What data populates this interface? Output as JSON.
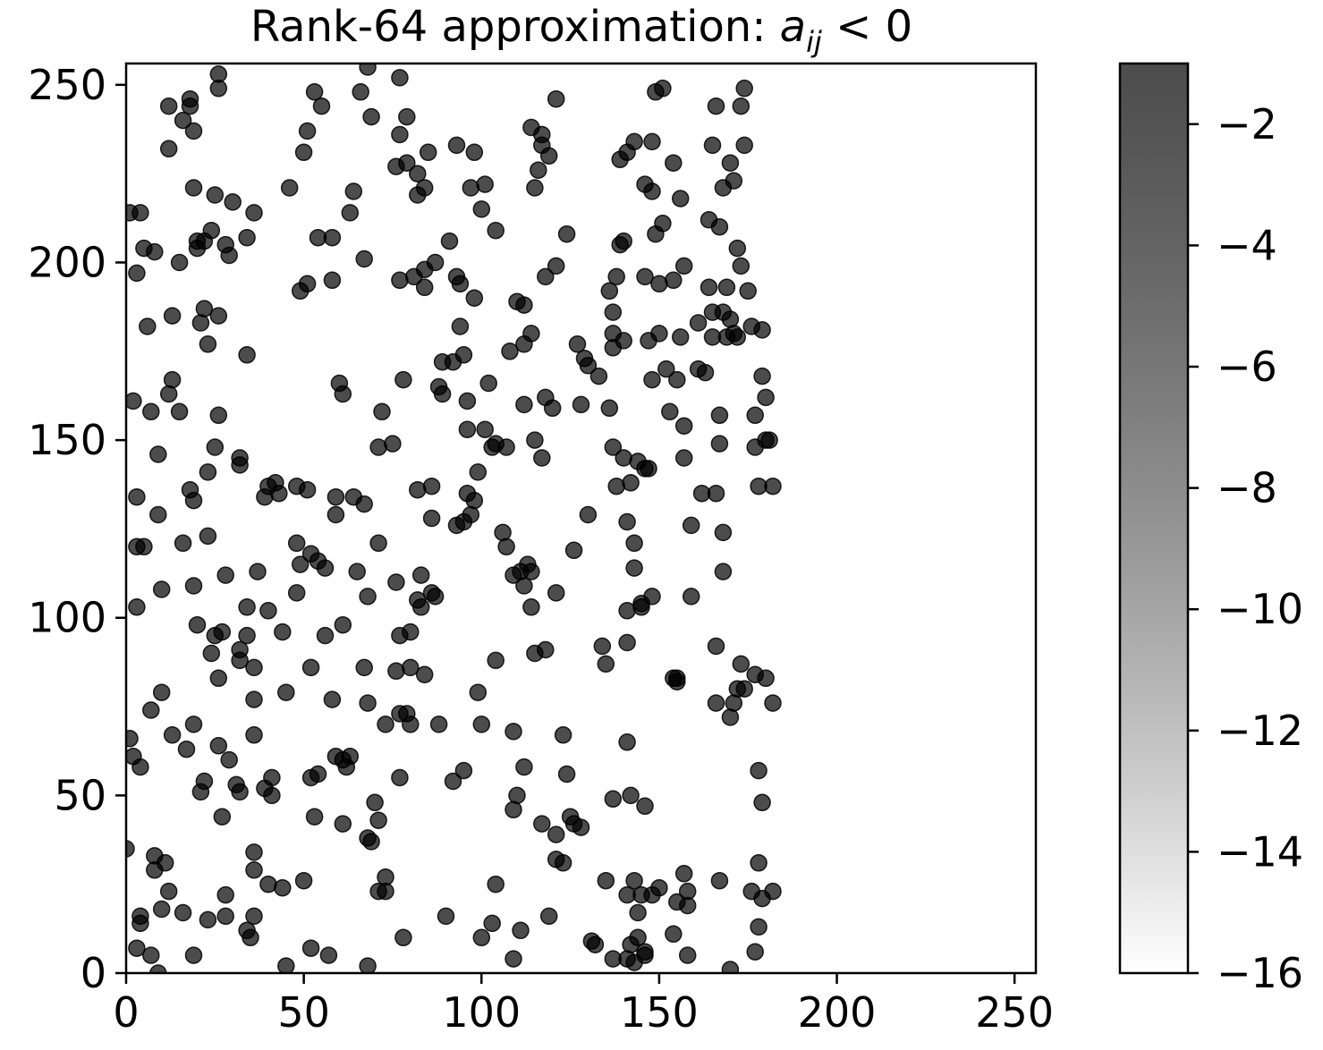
{
  "chart_data": {
    "type": "scatter",
    "title_prefix": "Rank-64 approximation: ",
    "title_math": "a",
    "title_math_sub": "ij",
    "title_suffix": " < 0",
    "xlabel": "",
    "ylabel": "",
    "xlim": [
      0,
      256
    ],
    "ylim": [
      0,
      256
    ],
    "x_ticks": [
      0,
      50,
      100,
      150,
      200,
      250
    ],
    "y_ticks": [
      0,
      50,
      100,
      150,
      200,
      250
    ],
    "x_tick_labels": [
      "0",
      "50",
      "100",
      "150",
      "200",
      "250"
    ],
    "y_tick_labels": [
      "0",
      "50",
      "100",
      "150",
      "200",
      "250"
    ],
    "grid": false,
    "colorbar": {
      "min": -16,
      "max": -1,
      "ticks": [
        -2,
        -4,
        -6,
        -8,
        -10,
        -12,
        -14,
        -16
      ],
      "tick_labels": [
        "−2",
        "−4",
        "−6",
        "−8",
        "−10",
        "−12",
        "−14",
        "−16"
      ],
      "colormap": "greys (white to black)"
    },
    "marker_color": "#000000",
    "marker_alpha": 0.7,
    "points": [
      [
        1,
        214
      ],
      [
        4,
        214
      ],
      [
        2,
        161
      ],
      [
        5,
        204
      ],
      [
        8,
        203
      ],
      [
        3,
        197
      ],
      [
        6,
        182
      ],
      [
        7,
        158
      ],
      [
        3,
        134
      ],
      [
        3,
        120
      ],
      [
        5,
        120
      ],
      [
        3,
        103
      ],
      [
        7,
        74
      ],
      [
        1,
        66
      ],
      [
        2,
        61
      ],
      [
        4,
        58
      ],
      [
        0,
        35
      ],
      [
        8,
        33
      ],
      [
        8,
        29
      ],
      [
        11,
        31
      ],
      [
        4,
        16
      ],
      [
        4,
        14
      ],
      [
        3,
        7
      ],
      [
        7,
        5
      ],
      [
        9,
        0
      ],
      [
        12,
        244
      ],
      [
        18,
        246
      ],
      [
        18,
        244
      ],
      [
        16,
        240
      ],
      [
        19,
        237
      ],
      [
        12,
        232
      ],
      [
        19,
        221
      ],
      [
        20,
        206
      ],
      [
        22,
        206
      ],
      [
        24,
        209
      ],
      [
        20,
        204
      ],
      [
        15,
        200
      ],
      [
        13,
        185
      ],
      [
        22,
        187
      ],
      [
        21,
        183
      ],
      [
        23,
        177
      ],
      [
        13,
        167
      ],
      [
        12,
        163
      ],
      [
        15,
        158
      ],
      [
        9,
        146
      ],
      [
        18,
        136
      ],
      [
        19,
        133
      ],
      [
        9,
        129
      ],
      [
        16,
        121
      ],
      [
        23,
        123
      ],
      [
        19,
        109
      ],
      [
        10,
        108
      ],
      [
        20,
        98
      ],
      [
        10,
        79
      ],
      [
        13,
        67
      ],
      [
        19,
        70
      ],
      [
        17,
        63
      ],
      [
        22,
        54
      ],
      [
        21,
        51
      ],
      [
        12,
        23
      ],
      [
        10,
        18
      ],
      [
        16,
        17
      ],
      [
        19,
        5
      ],
      [
        23,
        15
      ],
      [
        26,
        253
      ],
      [
        26,
        249
      ],
      [
        25,
        219
      ],
      [
        28,
        205
      ],
      [
        29,
        202
      ],
      [
        30,
        217
      ],
      [
        26,
        185
      ],
      [
        26,
        157
      ],
      [
        25,
        148
      ],
      [
        23,
        141
      ],
      [
        32,
        145
      ],
      [
        32,
        143
      ],
      [
        28,
        112
      ],
      [
        25,
        95
      ],
      [
        27,
        96
      ],
      [
        24,
        90
      ],
      [
        26,
        83
      ],
      [
        32,
        91
      ],
      [
        34,
        95
      ],
      [
        32,
        88
      ],
      [
        29,
        60
      ],
      [
        26,
        64
      ],
      [
        31,
        53
      ],
      [
        32,
        51
      ],
      [
        27,
        44
      ],
      [
        28,
        22
      ],
      [
        28,
        16
      ],
      [
        34,
        207
      ],
      [
        36,
        214
      ],
      [
        34,
        174
      ],
      [
        40,
        137
      ],
      [
        39,
        134
      ],
      [
        43,
        135
      ],
      [
        42,
        138
      ],
      [
        37,
        113
      ],
      [
        34,
        103
      ],
      [
        40,
        102
      ],
      [
        36,
        86
      ],
      [
        36,
        77
      ],
      [
        36,
        67
      ],
      [
        39,
        52
      ],
      [
        41,
        50
      ],
      [
        41,
        55
      ],
      [
        36,
        34
      ],
      [
        36,
        29
      ],
      [
        40,
        25
      ],
      [
        36,
        16
      ],
      [
        34,
        12
      ],
      [
        35,
        10
      ],
      [
        46,
        221
      ],
      [
        49,
        192
      ],
      [
        51,
        194
      ],
      [
        51,
        237
      ],
      [
        50,
        231
      ],
      [
        53,
        248
      ],
      [
        55,
        244
      ],
      [
        54,
        207
      ],
      [
        58,
        207
      ],
      [
        58,
        195
      ],
      [
        48,
        137
      ],
      [
        51,
        136
      ],
      [
        48,
        121
      ],
      [
        48,
        107
      ],
      [
        49,
        115
      ],
      [
        52,
        118
      ],
      [
        54,
        116
      ],
      [
        56,
        114
      ],
      [
        44,
        96
      ],
      [
        52,
        86
      ],
      [
        45,
        79
      ],
      [
        52,
        55
      ],
      [
        54,
        56
      ],
      [
        50,
        26
      ],
      [
        44,
        24
      ],
      [
        53,
        44
      ],
      [
        45,
        2
      ],
      [
        52,
        7
      ],
      [
        64,
        220
      ],
      [
        63,
        214
      ],
      [
        60,
        166
      ],
      [
        61,
        163
      ],
      [
        66,
        248
      ],
      [
        68,
        255
      ],
      [
        69,
        241
      ],
      [
        67,
        201
      ],
      [
        59,
        134
      ],
      [
        64,
        134
      ],
      [
        67,
        132
      ],
      [
        59,
        129
      ],
      [
        61,
        98
      ],
      [
        56,
        95
      ],
      [
        65,
        113
      ],
      [
        68,
        106
      ],
      [
        67,
        86
      ],
      [
        58,
        77
      ],
      [
        68,
        76
      ],
      [
        59,
        61
      ],
      [
        61,
        60
      ],
      [
        63,
        61
      ],
      [
        62,
        58
      ],
      [
        61,
        42
      ],
      [
        68,
        38
      ],
      [
        69,
        37
      ],
      [
        57,
        5
      ],
      [
        77,
        252
      ],
      [
        77,
        236
      ],
      [
        79,
        241
      ],
      [
        79,
        228
      ],
      [
        76,
        227
      ],
      [
        82,
        225
      ],
      [
        82,
        219
      ],
      [
        84,
        221
      ],
      [
        85,
        231
      ],
      [
        77,
        195
      ],
      [
        81,
        196
      ],
      [
        78,
        167
      ],
      [
        72,
        158
      ],
      [
        71,
        148
      ],
      [
        75,
        149
      ],
      [
        71,
        121
      ],
      [
        76,
        110
      ],
      [
        77,
        95
      ],
      [
        80,
        96
      ],
      [
        80,
        86
      ],
      [
        76,
        85
      ],
      [
        84,
        84
      ],
      [
        79,
        73
      ],
      [
        77,
        73
      ],
      [
        80,
        70
      ],
      [
        73,
        70
      ],
      [
        77,
        55
      ],
      [
        70,
        48
      ],
      [
        71,
        43
      ],
      [
        73,
        27
      ],
      [
        71,
        23
      ],
      [
        73,
        23
      ],
      [
        78,
        10
      ],
      [
        68,
        2
      ],
      [
        84,
        198
      ],
      [
        84,
        193
      ],
      [
        87,
        200
      ],
      [
        91,
        206
      ],
      [
        89,
        172
      ],
      [
        88,
        165
      ],
      [
        89,
        163
      ],
      [
        86,
        137
      ],
      [
        82,
        136
      ],
      [
        83,
        112
      ],
      [
        82,
        105
      ],
      [
        83,
        103
      ],
      [
        86,
        107
      ],
      [
        87,
        106
      ],
      [
        86,
        128
      ],
      [
        88,
        70
      ],
      [
        92,
        54
      ],
      [
        90,
        16
      ],
      [
        93,
        196
      ],
      [
        94,
        194
      ],
      [
        94,
        182
      ],
      [
        92,
        172
      ],
      [
        95,
        174
      ],
      [
        96,
        161
      ],
      [
        96,
        153
      ],
      [
        96,
        135
      ],
      [
        98,
        133
      ],
      [
        95,
        127
      ],
      [
        97,
        129
      ],
      [
        93,
        126
      ],
      [
        100,
        215
      ],
      [
        97,
        221
      ],
      [
        101,
        222
      ],
      [
        98,
        231
      ],
      [
        93,
        233
      ],
      [
        104,
        209
      ],
      [
        98,
        190
      ],
      [
        102,
        166
      ],
      [
        99,
        141
      ],
      [
        101,
        153
      ],
      [
        103,
        148
      ],
      [
        95,
        57
      ],
      [
        100,
        70
      ],
      [
        99,
        79
      ],
      [
        100,
        10
      ],
      [
        110,
        189
      ],
      [
        112,
        188
      ],
      [
        108,
        175
      ],
      [
        112,
        160
      ],
      [
        107,
        148
      ],
      [
        104,
        149
      ],
      [
        106,
        124
      ],
      [
        107,
        120
      ],
      [
        113,
        115
      ],
      [
        111,
        113
      ],
      [
        114,
        113
      ],
      [
        109,
        112
      ],
      [
        112,
        109
      ],
      [
        104,
        88
      ],
      [
        109,
        68
      ],
      [
        112,
        58
      ],
      [
        109,
        46
      ],
      [
        110,
        50
      ],
      [
        104,
        25
      ],
      [
        103,
        14
      ],
      [
        109,
        4
      ],
      [
        111,
        12
      ],
      [
        114,
        238
      ],
      [
        117,
        233
      ],
      [
        117,
        236
      ],
      [
        119,
        230
      ],
      [
        116,
        226
      ],
      [
        121,
        246
      ],
      [
        115,
        221
      ],
      [
        118,
        196
      ],
      [
        121,
        199
      ],
      [
        112,
        177
      ],
      [
        114,
        180
      ],
      [
        115,
        150
      ],
      [
        117,
        145
      ],
      [
        118,
        162
      ],
      [
        120,
        159
      ],
      [
        114,
        103
      ],
      [
        118,
        91
      ],
      [
        115,
        90
      ],
      [
        121,
        107
      ],
      [
        123,
        67
      ],
      [
        124,
        56
      ],
      [
        117,
        42
      ],
      [
        121,
        39
      ],
      [
        125,
        44
      ],
      [
        126,
        42
      ],
      [
        121,
        32
      ],
      [
        123,
        31
      ],
      [
        119,
        16
      ],
      [
        124,
        208
      ],
      [
        127,
        177
      ],
      [
        129,
        173
      ],
      [
        130,
        171
      ],
      [
        128,
        160
      ],
      [
        133,
        168
      ],
      [
        130,
        129
      ],
      [
        126,
        119
      ],
      [
        128,
        41
      ],
      [
        131,
        9
      ],
      [
        132,
        8
      ],
      [
        136,
        192
      ],
      [
        137,
        186
      ],
      [
        137,
        180
      ],
      [
        137,
        176
      ],
      [
        138,
        196
      ],
      [
        139,
        205
      ],
      [
        140,
        206
      ],
      [
        139,
        229
      ],
      [
        141,
        231
      ],
      [
        143,
        234
      ],
      [
        140,
        178
      ],
      [
        136,
        159
      ],
      [
        137,
        148
      ],
      [
        138,
        137
      ],
      [
        140,
        145
      ],
      [
        141,
        127
      ],
      [
        142,
        138
      ],
      [
        143,
        121
      ],
      [
        141,
        102
      ],
      [
        144,
        144
      ],
      [
        143,
        114
      ],
      [
        134,
        92
      ],
      [
        135,
        87
      ],
      [
        141,
        93
      ],
      [
        141,
        65
      ],
      [
        137,
        49
      ],
      [
        142,
        50
      ],
      [
        135,
        26
      ],
      [
        141,
        22
      ],
      [
        143,
        26
      ],
      [
        144,
        17
      ],
      [
        142,
        8
      ],
      [
        143,
        3
      ],
      [
        141,
        4
      ],
      [
        137,
        4
      ],
      [
        144,
        10
      ],
      [
        145,
        22
      ],
      [
        146,
        196
      ],
      [
        148,
        234
      ],
      [
        149,
        248
      ],
      [
        151,
        249
      ],
      [
        146,
        222
      ],
      [
        148,
        220
      ],
      [
        151,
        211
      ],
      [
        149,
        208
      ],
      [
        150,
        194
      ],
      [
        154,
        195
      ],
      [
        147,
        178
      ],
      [
        150,
        180
      ],
      [
        156,
        179
      ],
      [
        155,
        167
      ],
      [
        152,
        170
      ],
      [
        148,
        167
      ],
      [
        153,
        158
      ],
      [
        146,
        142
      ],
      [
        147,
        142
      ],
      [
        145,
        104
      ],
      [
        148,
        106
      ],
      [
        154,
        83
      ],
      [
        155,
        83
      ],
      [
        155,
        82
      ],
      [
        145,
        103
      ],
      [
        146,
        47
      ],
      [
        148,
        22
      ],
      [
        150,
        24
      ],
      [
        157,
        28
      ],
      [
        158,
        23
      ],
      [
        155,
        20
      ],
      [
        158,
        19
      ],
      [
        146,
        6
      ],
      [
        146,
        5
      ],
      [
        154,
        228
      ],
      [
        156,
        218
      ],
      [
        157,
        199
      ],
      [
        164,
        212
      ],
      [
        167,
        210
      ],
      [
        164,
        193
      ],
      [
        169,
        193
      ],
      [
        168,
        186
      ],
      [
        161,
        183
      ],
      [
        165,
        186
      ],
      [
        171,
        180
      ],
      [
        172,
        179
      ],
      [
        170,
        184
      ],
      [
        165,
        179
      ],
      [
        169,
        179
      ],
      [
        161,
        170
      ],
      [
        163,
        169
      ],
      [
        157,
        154
      ],
      [
        167,
        157
      ],
      [
        167,
        149
      ],
      [
        157,
        145
      ],
      [
        162,
        135
      ],
      [
        166,
        135
      ],
      [
        159,
        126
      ],
      [
        168,
        124
      ],
      [
        168,
        113
      ],
      [
        159,
        106
      ],
      [
        166,
        92
      ],
      [
        166,
        76
      ],
      [
        171,
        76
      ],
      [
        170,
        72
      ],
      [
        167,
        26
      ],
      [
        154,
        11
      ],
      [
        158,
        5
      ],
      [
        170,
        1
      ],
      [
        165,
        233
      ],
      [
        166,
        244
      ],
      [
        173,
        244
      ],
      [
        174,
        249
      ],
      [
        170,
        228
      ],
      [
        171,
        223
      ],
      [
        168,
        221
      ],
      [
        172,
        204
      ],
      [
        173,
        199
      ],
      [
        175,
        192
      ],
      [
        174,
        233
      ],
      [
        176,
        182
      ],
      [
        179,
        181
      ],
      [
        179,
        168
      ],
      [
        180,
        162
      ],
      [
        177,
        157
      ],
      [
        177,
        148
      ],
      [
        180,
        150
      ],
      [
        181,
        150
      ],
      [
        178,
        137
      ],
      [
        182,
        137
      ],
      [
        173,
        87
      ],
      [
        177,
        84
      ],
      [
        180,
        83
      ],
      [
        182,
        76
      ],
      [
        174,
        80
      ],
      [
        172,
        80
      ],
      [
        178,
        57
      ],
      [
        179,
        48
      ],
      [
        178,
        31
      ],
      [
        179,
        21
      ],
      [
        178,
        13
      ],
      [
        176,
        23
      ],
      [
        177,
        6
      ],
      [
        182,
        23
      ]
    ]
  }
}
